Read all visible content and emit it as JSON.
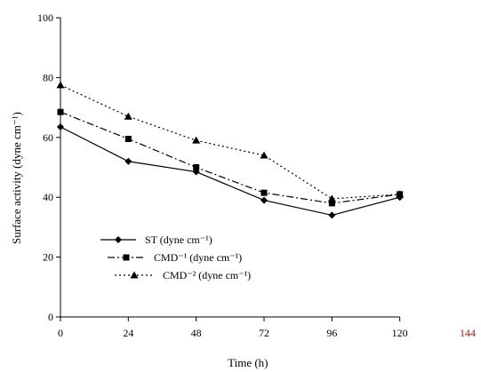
{
  "chart_data": {
    "type": "line",
    "xlabel": "Time (h)",
    "ylabel": "Surface activity (dyne cm⁻¹)",
    "x_ticks": [
      0,
      24,
      48,
      72,
      96,
      120
    ],
    "extra_x_tick_label": "144",
    "extra_x_tick_color": "#8b1a1a",
    "y_ticks": [
      0,
      20,
      40,
      60,
      80,
      100
    ],
    "xlim": [
      0,
      144
    ],
    "ylim": [
      0,
      100
    ],
    "grid": false,
    "legend_position": "lower-left",
    "x": [
      0,
      24,
      48,
      72,
      96,
      120
    ],
    "series": [
      {
        "name": "ST (dyne cm⁻¹)",
        "values": [
          63.5,
          52,
          48.5,
          39,
          34,
          40
        ],
        "marker": "diamond",
        "dash": "solid",
        "color": "#000000"
      },
      {
        "name": "CMD⁻¹ (dyne cm⁻¹)",
        "values": [
          68.5,
          59.5,
          50,
          41.5,
          38,
          41
        ],
        "marker": "square",
        "dash": "dashdot",
        "color": "#000000"
      },
      {
        "name": "CMD⁻² (dyne cm⁻¹)",
        "values": [
          77.5,
          67,
          59,
          54,
          39.5,
          41
        ],
        "marker": "triangle",
        "dash": "dotted",
        "color": "#000000"
      }
    ]
  }
}
